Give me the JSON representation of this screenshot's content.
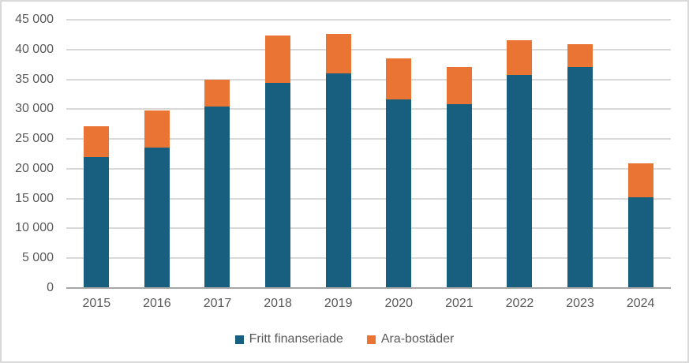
{
  "chart_data": {
    "type": "bar",
    "stacked": true,
    "title": "",
    "xlabel": "",
    "ylabel": "",
    "categories": [
      "2015",
      "2016",
      "2017",
      "2018",
      "2019",
      "2020",
      "2021",
      "2022",
      "2023",
      "2024"
    ],
    "series": [
      {
        "name": "Fritt finanseriade",
        "color": "#185f7f",
        "values": [
          22000,
          23600,
          30400,
          34400,
          36000,
          31700,
          30900,
          35700,
          37000,
          15200
        ]
      },
      {
        "name": "Ara-bostäder",
        "color": "#ea7433",
        "values": [
          5200,
          6200,
          4600,
          8000,
          6600,
          6800,
          6200,
          5800,
          3900,
          5700
        ]
      }
    ],
    "ylim": [
      0,
      45000
    ],
    "ytick_step": 5000,
    "ytick_labels_top_to_bottom": [
      "45 000",
      "40 000",
      "35 000",
      "30 000",
      "25 000",
      "20 000",
      "15 000",
      "10 000",
      "5 000",
      "0"
    ],
    "grid": true,
    "legend_position": "bottom-center"
  },
  "style_colors": {
    "gridline": "#d9d9d9",
    "axis_line": "#a6a6a6",
    "tick_text": "#595959",
    "canvas_border": "#d9d9d9",
    "background": "#ffffff"
  }
}
